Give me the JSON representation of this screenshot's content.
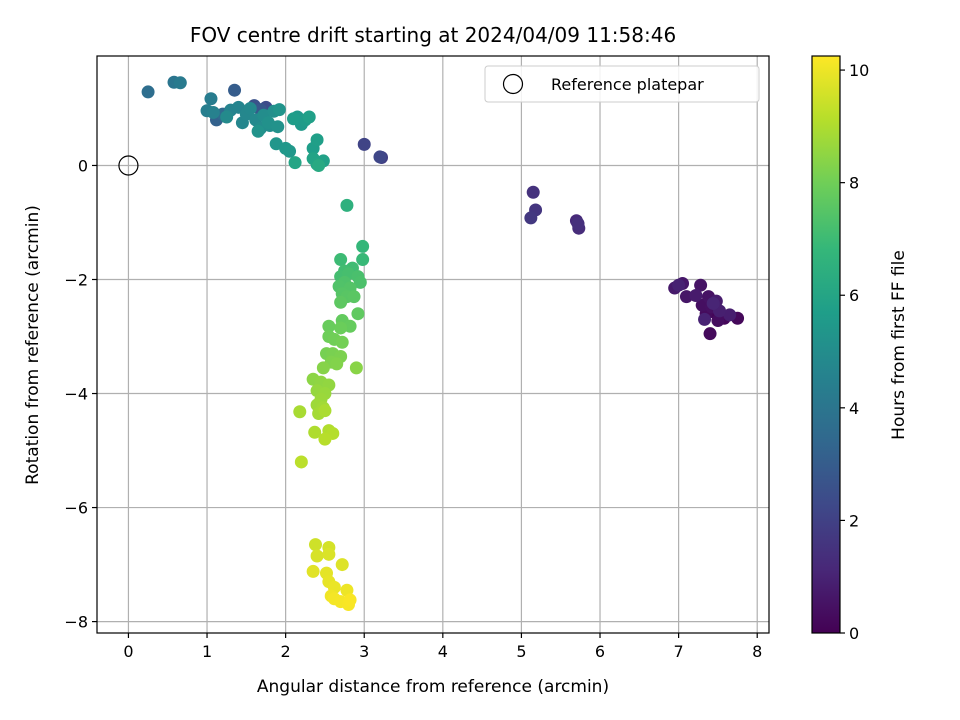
{
  "chart_data": {
    "type": "scatter",
    "title": "FOV centre drift starting at 2024/04/09 11:58:46",
    "xlabel": "Angular distance from reference (arcmin)",
    "ylabel": "Rotation from reference (arcmin)",
    "xlim": [
      -0.4,
      8.15
    ],
    "ylim": [
      -8.2,
      1.92
    ],
    "xticks": [
      0,
      1,
      2,
      3,
      4,
      5,
      6,
      7,
      8
    ],
    "yticks": [
      0,
      -2,
      -4,
      -6,
      -8
    ],
    "grid": true,
    "legend": {
      "placement": "top-right",
      "entries": [
        {
          "label": "Reference platepar",
          "marker": "open-circle"
        }
      ]
    },
    "reference_point": {
      "x": 0,
      "y": 0
    },
    "colorbar": {
      "label": "Hours from first FF file",
      "range": [
        0,
        10.25
      ],
      "ticks": [
        0,
        2,
        4,
        6,
        8,
        10
      ],
      "colormap": [
        "#440154",
        "#482878",
        "#3e4989",
        "#31688e",
        "#26828e",
        "#1f9e89",
        "#35b779",
        "#6ece58",
        "#b5de2b",
        "#fde725"
      ]
    },
    "points": [
      {
        "x": 7.45,
        "y": -2.57,
        "h": 0.1
      },
      {
        "x": 7.58,
        "y": -2.68,
        "h": 0.15
      },
      {
        "x": 7.75,
        "y": -2.68,
        "h": 0.2
      },
      {
        "x": 7.4,
        "y": -2.95,
        "h": 0.25
      },
      {
        "x": 7.35,
        "y": -2.6,
        "h": 0.3
      },
      {
        "x": 7.5,
        "y": -2.72,
        "h": 0.35
      },
      {
        "x": 7.3,
        "y": -2.45,
        "h": 0.4
      },
      {
        "x": 7.42,
        "y": -2.48,
        "h": 0.45
      },
      {
        "x": 7.38,
        "y": -2.3,
        "h": 0.5
      },
      {
        "x": 7.28,
        "y": -2.1,
        "h": 0.55
      },
      {
        "x": 7.1,
        "y": -2.3,
        "h": 0.6
      },
      {
        "x": 7.05,
        "y": -2.07,
        "h": 0.65
      },
      {
        "x": 6.95,
        "y": -2.15,
        "h": 0.7
      },
      {
        "x": 7.22,
        "y": -2.28,
        "h": 0.75
      },
      {
        "x": 7.48,
        "y": -2.38,
        "h": 0.8
      },
      {
        "x": 7.65,
        "y": -2.62,
        "h": 0.85
      },
      {
        "x": 7.52,
        "y": -2.55,
        "h": 0.9
      },
      {
        "x": 7.0,
        "y": -2.1,
        "h": 0.95
      },
      {
        "x": 7.33,
        "y": -2.7,
        "h": 1.0
      },
      {
        "x": 7.44,
        "y": -2.42,
        "h": 1.05
      },
      {
        "x": 5.7,
        "y": -0.97,
        "h": 1.2
      },
      {
        "x": 5.73,
        "y": -1.1,
        "h": 1.3
      },
      {
        "x": 5.72,
        "y": -1.02,
        "h": 1.4
      },
      {
        "x": 5.15,
        "y": -0.47,
        "h": 1.5
      },
      {
        "x": 5.18,
        "y": -0.78,
        "h": 1.6
      },
      {
        "x": 5.12,
        "y": -0.92,
        "h": 1.7
      },
      {
        "x": 3.22,
        "y": 0.14,
        "h": 1.9
      },
      {
        "x": 3.0,
        "y": 0.37,
        "h": 2.1
      },
      {
        "x": 3.2,
        "y": 0.15,
        "h": 2.2
      },
      {
        "x": 1.75,
        "y": 1.02,
        "h": 2.4
      },
      {
        "x": 1.6,
        "y": 1.05,
        "h": 2.6
      },
      {
        "x": 1.68,
        "y": 0.98,
        "h": 2.8
      },
      {
        "x": 1.35,
        "y": 1.32,
        "h": 3.0
      },
      {
        "x": 1.12,
        "y": 0.8,
        "h": 3.2
      },
      {
        "x": 1.2,
        "y": 0.9,
        "h": 3.5
      },
      {
        "x": 0.25,
        "y": 1.29,
        "h": 3.7
      },
      {
        "x": 0.58,
        "y": 1.46,
        "h": 4.0
      },
      {
        "x": 0.66,
        "y": 1.45,
        "h": 4.2
      },
      {
        "x": 1.05,
        "y": 1.17,
        "h": 4.3
      },
      {
        "x": 1.0,
        "y": 0.96,
        "h": 4.4
      },
      {
        "x": 1.08,
        "y": 0.93,
        "h": 4.5
      },
      {
        "x": 1.3,
        "y": 0.97,
        "h": 4.6
      },
      {
        "x": 1.4,
        "y": 1.02,
        "h": 4.65
      },
      {
        "x": 1.45,
        "y": 0.75,
        "h": 4.7
      },
      {
        "x": 1.5,
        "y": 0.9,
        "h": 4.75
      },
      {
        "x": 1.55,
        "y": 1.0,
        "h": 4.8
      },
      {
        "x": 1.62,
        "y": 0.8,
        "h": 4.85
      },
      {
        "x": 1.25,
        "y": 0.85,
        "h": 4.9
      },
      {
        "x": 1.68,
        "y": 0.65,
        "h": 4.95
      },
      {
        "x": 1.72,
        "y": 0.88,
        "h": 5.0
      },
      {
        "x": 1.8,
        "y": 0.7,
        "h": 5.05
      },
      {
        "x": 1.85,
        "y": 0.95,
        "h": 5.1
      },
      {
        "x": 1.78,
        "y": 0.75,
        "h": 5.15
      },
      {
        "x": 1.9,
        "y": 0.68,
        "h": 5.2
      },
      {
        "x": 1.65,
        "y": 0.6,
        "h": 5.25
      },
      {
        "x": 1.92,
        "y": 0.98,
        "h": 5.3
      },
      {
        "x": 1.88,
        "y": 0.38,
        "h": 5.35
      },
      {
        "x": 2.0,
        "y": 0.3,
        "h": 5.4
      },
      {
        "x": 2.05,
        "y": 0.25,
        "h": 5.45
      },
      {
        "x": 2.15,
        "y": 0.85,
        "h": 5.5
      },
      {
        "x": 2.2,
        "y": 0.72,
        "h": 5.55
      },
      {
        "x": 2.25,
        "y": 0.8,
        "h": 5.6
      },
      {
        "x": 2.1,
        "y": 0.82,
        "h": 5.65
      },
      {
        "x": 2.35,
        "y": 0.3,
        "h": 5.7
      },
      {
        "x": 2.4,
        "y": 0.45,
        "h": 5.75
      },
      {
        "x": 2.3,
        "y": 0.85,
        "h": 5.8
      },
      {
        "x": 2.48,
        "y": 0.08,
        "h": 5.85
      },
      {
        "x": 2.35,
        "y": 0.12,
        "h": 5.9
      },
      {
        "x": 2.4,
        "y": 0.02,
        "h": 5.95
      },
      {
        "x": 2.12,
        "y": 0.05,
        "h": 6.0
      },
      {
        "x": 2.42,
        "y": 0.0,
        "h": 6.2
      },
      {
        "x": 2.78,
        "y": -0.7,
        "h": 6.5
      },
      {
        "x": 2.98,
        "y": -1.42,
        "h": 6.8
      },
      {
        "x": 2.98,
        "y": -1.65,
        "h": 6.9
      },
      {
        "x": 2.7,
        "y": -1.65,
        "h": 7.0
      },
      {
        "x": 2.85,
        "y": -1.8,
        "h": 7.05
      },
      {
        "x": 2.75,
        "y": -1.85,
        "h": 7.1
      },
      {
        "x": 2.7,
        "y": -1.95,
        "h": 7.15
      },
      {
        "x": 2.8,
        "y": -1.9,
        "h": 7.2
      },
      {
        "x": 2.92,
        "y": -1.95,
        "h": 7.25
      },
      {
        "x": 2.95,
        "y": -2.05,
        "h": 7.3
      },
      {
        "x": 2.75,
        "y": -2.05,
        "h": 7.35
      },
      {
        "x": 2.68,
        "y": -2.12,
        "h": 7.4
      },
      {
        "x": 2.82,
        "y": -2.15,
        "h": 7.45
      },
      {
        "x": 2.72,
        "y": -2.25,
        "h": 7.5
      },
      {
        "x": 2.78,
        "y": -2.3,
        "h": 7.55
      },
      {
        "x": 2.87,
        "y": -2.3,
        "h": 7.6
      },
      {
        "x": 2.7,
        "y": -2.4,
        "h": 7.65
      },
      {
        "x": 2.92,
        "y": -2.6,
        "h": 7.7
      },
      {
        "x": 2.72,
        "y": -2.72,
        "h": 7.75
      },
      {
        "x": 2.82,
        "y": -2.82,
        "h": 7.8
      },
      {
        "x": 2.55,
        "y": -2.82,
        "h": 7.85
      },
      {
        "x": 2.7,
        "y": -2.85,
        "h": 7.9
      },
      {
        "x": 2.55,
        "y": -3.0,
        "h": 7.95
      },
      {
        "x": 2.62,
        "y": -3.05,
        "h": 8.0
      },
      {
        "x": 2.72,
        "y": -3.1,
        "h": 8.05
      },
      {
        "x": 2.52,
        "y": -3.3,
        "h": 8.1
      },
      {
        "x": 2.6,
        "y": -3.3,
        "h": 8.15
      },
      {
        "x": 2.7,
        "y": -3.35,
        "h": 8.2
      },
      {
        "x": 2.58,
        "y": -3.45,
        "h": 8.25
      },
      {
        "x": 2.65,
        "y": -3.48,
        "h": 8.3
      },
      {
        "x": 2.48,
        "y": -3.55,
        "h": 8.35
      },
      {
        "x": 2.9,
        "y": -3.55,
        "h": 8.4
      },
      {
        "x": 2.35,
        "y": -3.75,
        "h": 8.45
      },
      {
        "x": 2.45,
        "y": -3.8,
        "h": 8.5
      },
      {
        "x": 2.55,
        "y": -3.85,
        "h": 8.55
      },
      {
        "x": 2.4,
        "y": -3.95,
        "h": 8.6
      },
      {
        "x": 2.5,
        "y": -4.0,
        "h": 8.65
      },
      {
        "x": 2.45,
        "y": -4.1,
        "h": 8.7
      },
      {
        "x": 2.4,
        "y": -4.2,
        "h": 8.75
      },
      {
        "x": 2.48,
        "y": -4.25,
        "h": 8.8
      },
      {
        "x": 2.42,
        "y": -4.35,
        "h": 8.85
      },
      {
        "x": 2.18,
        "y": -4.32,
        "h": 8.9
      },
      {
        "x": 2.5,
        "y": -4.3,
        "h": 8.95
      },
      {
        "x": 2.37,
        "y": -4.68,
        "h": 9.0
      },
      {
        "x": 2.55,
        "y": -4.65,
        "h": 9.05
      },
      {
        "x": 2.6,
        "y": -4.7,
        "h": 9.1
      },
      {
        "x": 2.5,
        "y": -4.8,
        "h": 9.15
      },
      {
        "x": 2.2,
        "y": -5.2,
        "h": 9.2
      },
      {
        "x": 2.38,
        "y": -6.65,
        "h": 9.5
      },
      {
        "x": 2.55,
        "y": -6.7,
        "h": 9.6
      },
      {
        "x": 2.4,
        "y": -6.85,
        "h": 9.65
      },
      {
        "x": 2.55,
        "y": -6.82,
        "h": 9.7
      },
      {
        "x": 2.72,
        "y": -7.0,
        "h": 9.75
      },
      {
        "x": 2.35,
        "y": -7.12,
        "h": 9.8
      },
      {
        "x": 2.52,
        "y": -7.15,
        "h": 9.85
      },
      {
        "x": 2.55,
        "y": -7.3,
        "h": 9.9
      },
      {
        "x": 2.62,
        "y": -7.4,
        "h": 9.95
      },
      {
        "x": 2.78,
        "y": -7.45,
        "h": 10.0
      },
      {
        "x": 2.58,
        "y": -7.55,
        "h": 10.05
      },
      {
        "x": 2.62,
        "y": -7.6,
        "h": 10.1
      },
      {
        "x": 2.7,
        "y": -7.65,
        "h": 10.12
      },
      {
        "x": 2.8,
        "y": -7.7,
        "h": 10.15
      },
      {
        "x": 2.82,
        "y": -7.62,
        "h": 10.18
      }
    ]
  }
}
